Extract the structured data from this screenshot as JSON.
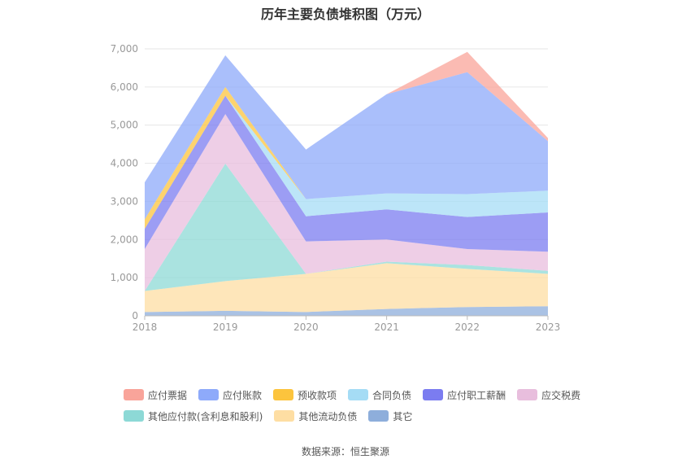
{
  "chart_data": {
    "type": "area",
    "stacked": true,
    "title": "历年主要负债堆积图（万元）",
    "x": [
      "2018",
      "2019",
      "2020",
      "2021",
      "2022",
      "2023"
    ],
    "y_ticks": [
      "0",
      "1,000",
      "2,000",
      "3,000",
      "4,000",
      "5,000",
      "6,000",
      "7,000"
    ],
    "ylim": [
      0,
      7000
    ],
    "grid": true,
    "legend_position": "bottom",
    "series": [
      {
        "name": "其它",
        "color": "#8eaedb",
        "values": [
          100,
          130,
          100,
          180,
          230,
          250
        ]
      },
      {
        "name": "其他流动负债",
        "color": "#fedea3",
        "values": [
          550,
          780,
          1000,
          1200,
          1000,
          850
        ]
      },
      {
        "name": "其他应付款(含利息和股利)",
        "color": "#8dd9d6",
        "values": [
          0,
          3080,
          0,
          40,
          100,
          80
        ]
      },
      {
        "name": "应交税费",
        "color": "#e8bedd",
        "values": [
          1100,
          1300,
          850,
          580,
          420,
          500
        ]
      },
      {
        "name": "应付职工薪酬",
        "color": "#7b7cf0",
        "values": [
          530,
          480,
          660,
          790,
          840,
          1030
        ]
      },
      {
        "name": "合同负债",
        "color": "#a5dcf5",
        "values": [
          0,
          0,
          450,
          420,
          600,
          570
        ]
      },
      {
        "name": "预收款项",
        "color": "#fcc43d",
        "values": [
          250,
          230,
          0,
          0,
          0,
          0
        ]
      },
      {
        "name": "应付账款",
        "color": "#8eaafa",
        "values": [
          970,
          830,
          1300,
          2600,
          3200,
          1300
        ]
      },
      {
        "name": "应付票据",
        "color": "#f9a49a",
        "values": [
          0,
          0,
          0,
          0,
          530,
          80
        ]
      }
    ],
    "legend_rows": [
      [
        0,
        1,
        2,
        3,
        4,
        5
      ],
      [
        6,
        7,
        8
      ]
    ],
    "legend_order": [
      "应付票据",
      "应付账款",
      "预收款项",
      "合同负债",
      "应付职工薪酬",
      "应交税费",
      "其他应付款(含利息和股利)",
      "其他流动负债",
      "其它"
    ]
  },
  "source": "数据来源：恒生聚源"
}
